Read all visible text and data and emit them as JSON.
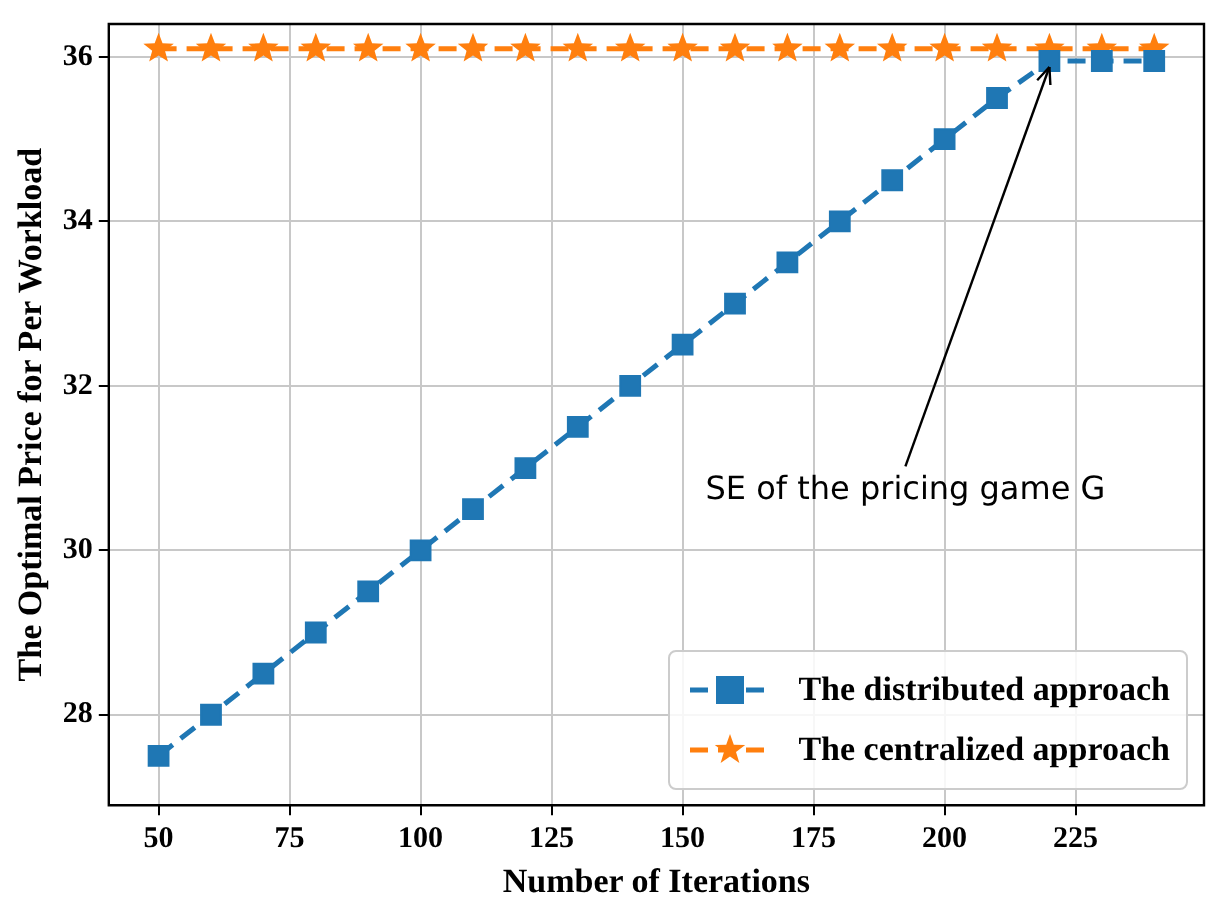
{
  "chart_data": {
    "type": "line",
    "xlabel": "Number of Iterations",
    "ylabel": "The Optimal Price for Per Workload",
    "x": [
      50,
      60,
      70,
      80,
      90,
      100,
      110,
      120,
      130,
      140,
      150,
      160,
      170,
      180,
      190,
      200,
      210,
      220,
      230,
      240
    ],
    "series": [
      {
        "name": "The distributed approach",
        "color": "#1f77b4",
        "marker": "square",
        "values": [
          27.5,
          28,
          28.5,
          29,
          29.5,
          30,
          30.5,
          31,
          31.5,
          32,
          32.5,
          33,
          33.5,
          34,
          34.5,
          35,
          35.5,
          35.95,
          35.95,
          35.95
        ]
      },
      {
        "name": "The centralized approach",
        "color": "#ff7f0e",
        "marker": "star",
        "values": [
          36.1,
          36.1,
          36.1,
          36.1,
          36.1,
          36.1,
          36.1,
          36.1,
          36.1,
          36.1,
          36.1,
          36.1,
          36.1,
          36.1,
          36.1,
          36.1,
          36.1,
          36.1,
          36.1,
          36.1
        ]
      }
    ],
    "xlim": [
      40.5,
      249.5
    ],
    "ylim": [
      26.9,
      36.4
    ],
    "xticks": [
      50,
      75,
      100,
      125,
      150,
      175,
      200,
      225
    ],
    "yticks": [
      28,
      30,
      32,
      34,
      36
    ],
    "grid": true,
    "legend": "bottom right",
    "line_style": "dashed",
    "annotations": [
      {
        "text": "SE of the pricing game G",
        "x": 220,
        "y": 35.95
      }
    ]
  }
}
